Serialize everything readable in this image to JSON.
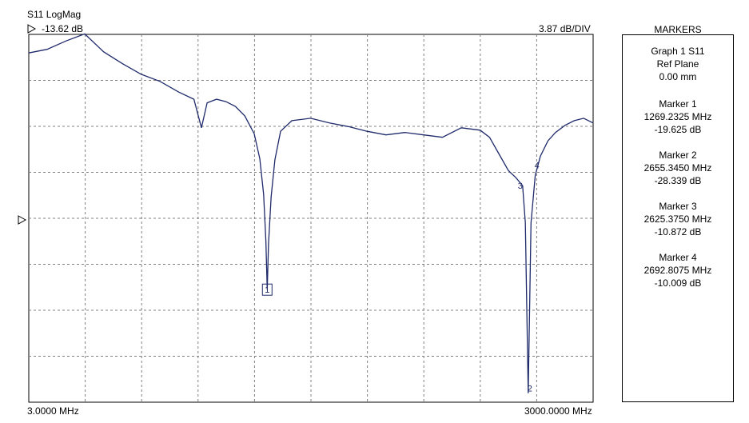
{
  "header": {
    "title": "S11 LogMag",
    "ref_value": "-13.62 dB",
    "scale": "3.87 dB/DIV",
    "ref_arrow_icon": "triangle-right-icon"
  },
  "axis": {
    "x_start_label": "3.0000 MHz",
    "x_stop_label": "3000.0000 MHz"
  },
  "markers_panel": {
    "title": "MARKERS",
    "graph_label": "Graph 1 S11",
    "ref_plane_label": "Ref Plane",
    "ref_plane_value": "0.00 mm",
    "markers": [
      {
        "label": "Marker  1",
        "freq": "1269.2325 MHz",
        "value": "-19.625 dB"
      },
      {
        "label": "Marker  2",
        "freq": "2655.3450 MHz",
        "value": "-28.339 dB"
      },
      {
        "label": "Marker  3",
        "freq": "2625.3750 MHz",
        "value": "-10.872 dB"
      },
      {
        "label": "Marker  4",
        "freq": "2692.8075 MHz",
        "value": "-10.009 dB"
      }
    ]
  },
  "chart_data": {
    "type": "line",
    "series": [
      {
        "x": [
          3,
          100,
          200,
          300,
          400,
          500,
          600,
          700,
          800,
          880,
          920,
          950,
          1000,
          1050,
          1100,
          1150,
          1200,
          1230,
          1250,
          1262,
          1269.2325,
          1276,
          1290,
          1310,
          1340,
          1400,
          1500,
          1600,
          1700,
          1800,
          1900,
          2000,
          2100,
          2200,
          2300,
          2400,
          2450,
          2500,
          2550,
          2590,
          2625.375,
          2640,
          2655.345,
          2670,
          2692.8075,
          2720,
          2760,
          2800,
          2850,
          2900,
          2950,
          3000
        ],
        "y": [
          0.3,
          0.6,
          1.3,
          1.9,
          0.4,
          -0.6,
          -1.5,
          -2.1,
          -3.0,
          -3.6,
          -6.0,
          -3.9,
          -3.6,
          -3.8,
          -4.2,
          -5.0,
          -6.5,
          -8.6,
          -11.6,
          -15.5,
          -19.625,
          -15.8,
          -11.8,
          -8.7,
          -6.3,
          -5.4,
          -5.2,
          -5.6,
          -5.9,
          -6.3,
          -6.6,
          -6.4,
          -6.6,
          -6.8,
          -6.0,
          -6.2,
          -6.8,
          -8.2,
          -9.6,
          -10.2,
          -10.872,
          -14.0,
          -28.339,
          -14.0,
          -10.009,
          -8.4,
          -7.1,
          -6.4,
          -5.8,
          -5.4,
          -5.2,
          -5.6
        ]
      }
    ],
    "markers": [
      {
        "id": "1",
        "x": 1269.2325,
        "y": -19.625
      },
      {
        "id": "2",
        "x": 2655.345,
        "y": -28.339
      },
      {
        "id": "3",
        "x": 2625.375,
        "y": -10.872
      },
      {
        "id": "4",
        "x": 2692.8075,
        "y": -10.009
      }
    ],
    "xlim": [
      3,
      3000
    ],
    "ylim": [
      -29.1,
      1.86
    ],
    "ref_level": -13.62,
    "scale_per_div": 3.87,
    "x_divisions": 10,
    "y_divisions": 8,
    "grid": true,
    "trace_color": "#1f2a6b",
    "grid_color": "#808080"
  }
}
